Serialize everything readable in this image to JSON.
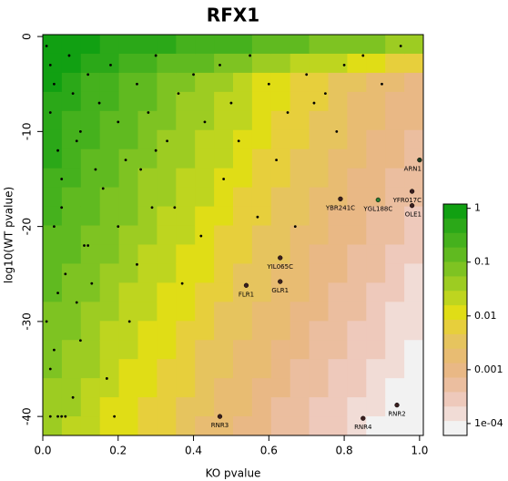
{
  "chart_data": {
    "type": "scatter",
    "title": "RFX1",
    "xlabel": "KO pvalue",
    "ylabel": "log10(WT pvalue)",
    "xlim": [
      0,
      1.01
    ],
    "ylim": [
      -42,
      0.2
    ],
    "xticks": [
      {
        "value": 0,
        "label": "0.0"
      },
      0.2,
      0.4,
      0.6,
      0.8,
      {
        "value": 1,
        "label": "1.0"
      }
    ],
    "yticks": [
      0,
      -10,
      -20,
      -30,
      -40
    ],
    "point_color": "#000000",
    "points": {
      "x": [
        0.01,
        0.02,
        0.03,
        0.02,
        0.04,
        0.05,
        0.03,
        0.06,
        0.01,
        0.02,
        0.04,
        0.07,
        0.08,
        0.05,
        0.1,
        0.12,
        0.09,
        0.15,
        0.11,
        0.14,
        0.18,
        0.2,
        0.22,
        0.25,
        0.28,
        0.3,
        0.33,
        0.36,
        0.4,
        0.43,
        0.47,
        0.5,
        0.55,
        0.6,
        0.65,
        0.7,
        0.75,
        0.8,
        0.85,
        0.9,
        0.95,
        0.16,
        0.2,
        0.25,
        0.3,
        0.35,
        0.42,
        0.48,
        0.52,
        0.57,
        0.62,
        0.67,
        0.72,
        0.78,
        0.1,
        0.13,
        0.17,
        0.23,
        0.29,
        0.37,
        0.06,
        0.08,
        0.04,
        0.03,
        0.12,
        0.19,
        0.26,
        0.02,
        0.05,
        0.09
      ],
      "y": [
        -1,
        -3,
        -5,
        -8,
        -12,
        -15,
        -20,
        -25,
        -30,
        -35,
        -40,
        -2,
        -6,
        -18,
        -10,
        -4,
        -28,
        -7,
        -22,
        -14,
        -3,
        -9,
        -13,
        -5,
        -8,
        -2,
        -11,
        -6,
        -4,
        -9,
        -3,
        -7,
        -2,
        -5,
        -8,
        -4,
        -6,
        -3,
        -2,
        -5,
        -1,
        -16,
        -20,
        -24,
        -12,
        -18,
        -21,
        -15,
        -11,
        -19,
        -13,
        -20,
        -7,
        -10,
        -32,
        -26,
        -36,
        -30,
        -18,
        -26,
        -40,
        -38,
        -27,
        -33,
        -22,
        -40,
        -14,
        -40,
        -40,
        -11
      ]
    },
    "genes": [
      {
        "label": "ARN1",
        "x": 1.0,
        "y": -13,
        "color": "#1f3a1f"
      },
      {
        "label": "YBR241C",
        "x": 0.79,
        "y": -17.1,
        "color": "#3a1f1f"
      },
      {
        "label": "YGL188C",
        "x": 0.89,
        "y": -17.2,
        "color": "#2e7d32"
      },
      {
        "label": "YFR017C",
        "x": 0.98,
        "y": -16.3,
        "color": "#3a1f1f"
      },
      {
        "label": "OLE1",
        "x": 0.98,
        "y": -17.8,
        "color": "#3a1f1f"
      },
      {
        "label": "YIL065C",
        "x": 0.63,
        "y": -23.3,
        "color": "#3a1f1f"
      },
      {
        "label": "FLR1",
        "x": 0.54,
        "y": -26.2,
        "color": "#3a1f1f"
      },
      {
        "label": "GLR1",
        "x": 0.63,
        "y": -25.8,
        "color": "#3a1f1f"
      },
      {
        "label": "RNR3",
        "x": 0.47,
        "y": -40,
        "color": "#3a1f1f"
      },
      {
        "label": "RNR4",
        "x": 0.85,
        "y": -40.2,
        "color": "#3a1f1f"
      },
      {
        "label": "RNR2",
        "x": 0.94,
        "y": -38.8,
        "color": "#3a1f1f"
      }
    ],
    "colorbar": {
      "log": true,
      "lim": [
        6e-05,
        1.2
      ],
      "ticks": [
        1,
        0.1,
        0.01,
        0.001,
        {
          "value": 0.0001,
          "label": "1e-04"
        }
      ],
      "colors": [
        "#11a012",
        "#2ba818",
        "#45b11d",
        "#60ba20",
        "#7ec322",
        "#9dcc22",
        "#bed51f",
        "#e0dd16",
        "#e7cf3c",
        "#e6c45e",
        "#e8bc72",
        "#e9b885",
        "#ebbe9f",
        "#eec9bb",
        "#f1dcd6",
        "#f2f2f2"
      ]
    }
  }
}
